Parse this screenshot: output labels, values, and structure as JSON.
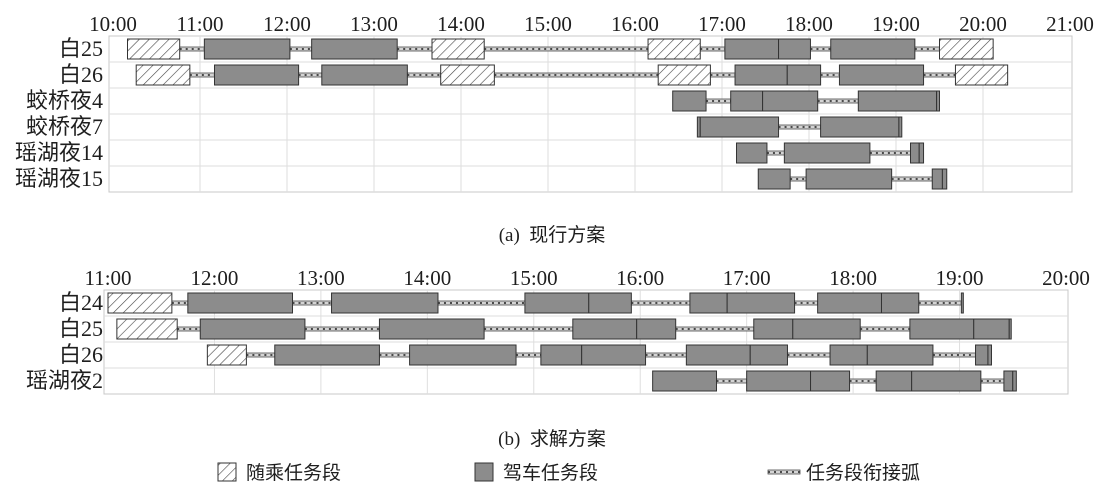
{
  "figure": {
    "colors": {
      "drive_fill": "#8c8c8c",
      "outline": "#333333",
      "hatch": "#444444",
      "grid": "#dedede",
      "frame": "#c8c8c8",
      "link_fill": "#d4d4d4",
      "link_dash": "#4a4a4a"
    },
    "legend": {
      "placement": "bottom",
      "items": [
        {
          "label": "随乘任务段",
          "style": "hatched"
        },
        {
          "label": "驾车任务段",
          "style": "gray-fill"
        },
        {
          "label": "任务段衔接弧",
          "style": "dashed-link"
        }
      ]
    }
  },
  "chart_data": [
    {
      "type": "bar",
      "subtype": "gantt",
      "caption": "(a)  现行方案",
      "x_axis_position": "top",
      "xlim": [
        "10:00",
        "21:00"
      ],
      "x_ticks": [
        "10:00",
        "11:00",
        "12:00",
        "13:00",
        "14:00",
        "15:00",
        "16:00",
        "17:00",
        "18:00",
        "19:00",
        "20:00",
        "21:00"
      ],
      "grid": true,
      "rows": [
        {
          "label": "白25",
          "segments": [
            {
              "start": "10:10",
              "end": "10:46",
              "kind": "随乘任务段"
            },
            {
              "start": "11:03",
              "end": "12:02",
              "kind": "驾车任务段"
            },
            {
              "start": "12:17",
              "end": "13:16",
              "kind": "驾车任务段"
            },
            {
              "start": "13:40",
              "end": "14:16",
              "kind": "随乘任务段"
            },
            {
              "start": "16:09",
              "end": "16:45",
              "kind": "随乘任务段"
            },
            {
              "start": "17:02",
              "end": "17:39",
              "kind": "驾车任务段"
            },
            {
              "start": "17:39",
              "end": "18:01",
              "kind": "驾车任务段"
            },
            {
              "start": "18:15",
              "end": "19:13",
              "kind": "驾车任务段"
            },
            {
              "start": "19:30",
              "end": "20:07",
              "kind": "随乘任务段"
            }
          ]
        },
        {
          "label": "白26",
          "segments": [
            {
              "start": "10:16",
              "end": "10:53",
              "kind": "随乘任务段"
            },
            {
              "start": "11:10",
              "end": "12:08",
              "kind": "驾车任务段"
            },
            {
              "start": "12:24",
              "end": "13:23",
              "kind": "驾车任务段"
            },
            {
              "start": "13:46",
              "end": "14:23",
              "kind": "随乘任务段"
            },
            {
              "start": "16:16",
              "end": "16:52",
              "kind": "随乘任务段"
            },
            {
              "start": "17:09",
              "end": "17:45",
              "kind": "驾车任务段"
            },
            {
              "start": "17:45",
              "end": "18:08",
              "kind": "驾车任务段"
            },
            {
              "start": "18:21",
              "end": "19:19",
              "kind": "驾车任务段"
            },
            {
              "start": "19:41",
              "end": "20:17",
              "kind": "随乘任务段"
            }
          ]
        },
        {
          "label": "蛟桥夜4",
          "segments": [
            {
              "start": "16:26",
              "end": "16:49",
              "kind": "驾车任务段"
            },
            {
              "start": "17:06",
              "end": "17:28",
              "kind": "驾车任务段"
            },
            {
              "start": "17:28",
              "end": "18:06",
              "kind": "驾车任务段"
            },
            {
              "start": "18:34",
              "end": "19:28",
              "kind": "驾车任务段"
            },
            {
              "start": "19:28",
              "end": "19:30",
              "kind": "驾车任务段"
            }
          ]
        },
        {
          "label": "蛟桥夜7",
          "segments": [
            {
              "start": "16:43",
              "end": "16:45",
              "kind": "驾车任务段"
            },
            {
              "start": "16:45",
              "end": "17:39",
              "kind": "驾车任务段"
            },
            {
              "start": "18:08",
              "end": "19:02",
              "kind": "驾车任务段"
            },
            {
              "start": "19:02",
              "end": "19:04",
              "kind": "驾车任务段"
            }
          ]
        },
        {
          "label": "瑶湖夜14",
          "segments": [
            {
              "start": "17:10",
              "end": "17:31",
              "kind": "驾车任务段"
            },
            {
              "start": "17:43",
              "end": "18:42",
              "kind": "驾车任务段"
            },
            {
              "start": "19:10",
              "end": "19:16",
              "kind": "驾车任务段"
            },
            {
              "start": "19:16",
              "end": "19:19",
              "kind": "驾车任务段"
            }
          ]
        },
        {
          "label": "瑶湖夜15",
          "segments": [
            {
              "start": "17:25",
              "end": "17:47",
              "kind": "驾车任务段"
            },
            {
              "start": "17:58",
              "end": "18:57",
              "kind": "驾车任务段"
            },
            {
              "start": "19:25",
              "end": "19:32",
              "kind": "驾车任务段"
            },
            {
              "start": "19:32",
              "end": "19:35",
              "kind": "驾车任务段"
            }
          ]
        }
      ]
    },
    {
      "type": "bar",
      "subtype": "gantt",
      "caption": "(b)  求解方案",
      "x_axis_position": "top",
      "xlim": [
        "11:00",
        "20:00"
      ],
      "x_ticks": [
        "11:00",
        "12:00",
        "13:00",
        "14:00",
        "15:00",
        "16:00",
        "17:00",
        "18:00",
        "19:00",
        "20:00"
      ],
      "grid": true,
      "rows": [
        {
          "label": "白24",
          "segments": [
            {
              "start": "11:00",
              "end": "11:36",
              "kind": "随乘任务段"
            },
            {
              "start": "11:45",
              "end": "12:44",
              "kind": "驾车任务段"
            },
            {
              "start": "13:06",
              "end": "14:06",
              "kind": "驾车任务段"
            },
            {
              "start": "14:55",
              "end": "15:31",
              "kind": "驾车任务段"
            },
            {
              "start": "15:31",
              "end": "15:55",
              "kind": "驾车任务段"
            },
            {
              "start": "16:28",
              "end": "16:49",
              "kind": "驾车任务段"
            },
            {
              "start": "16:49",
              "end": "17:27",
              "kind": "驾车任务段"
            },
            {
              "start": "17:40",
              "end": "18:16",
              "kind": "驾车任务段"
            },
            {
              "start": "18:16",
              "end": "18:37",
              "kind": "驾车任务段"
            },
            {
              "start": "19:01",
              "end": "19:02",
              "kind": "驾车任务段"
            }
          ]
        },
        {
          "label": "白25",
          "segments": [
            {
              "start": "11:05",
              "end": "11:39",
              "kind": "随乘任务段"
            },
            {
              "start": "11:52",
              "end": "12:51",
              "kind": "驾车任务段"
            },
            {
              "start": "13:33",
              "end": "14:32",
              "kind": "驾车任务段"
            },
            {
              "start": "15:22",
              "end": "15:58",
              "kind": "驾车任务段"
            },
            {
              "start": "15:58",
              "end": "16:20",
              "kind": "驾车任务段"
            },
            {
              "start": "17:04",
              "end": "17:26",
              "kind": "驾车任务段"
            },
            {
              "start": "17:26",
              "end": "18:04",
              "kind": "驾车任务段"
            },
            {
              "start": "18:32",
              "end": "19:08",
              "kind": "驾车任务段"
            },
            {
              "start": "19:08",
              "end": "19:28",
              "kind": "驾车任务段"
            },
            {
              "start": "19:28",
              "end": "19:29",
              "kind": "驾车任务段"
            }
          ]
        },
        {
          "label": "白26",
          "segments": [
            {
              "start": "11:56",
              "end": "12:18",
              "kind": "随乘任务段"
            },
            {
              "start": "12:34",
              "end": "13:33",
              "kind": "驾车任务段"
            },
            {
              "start": "13:50",
              "end": "14:50",
              "kind": "驾车任务段"
            },
            {
              "start": "15:04",
              "end": "15:27",
              "kind": "驾车任务段"
            },
            {
              "start": "15:27",
              "end": "16:03",
              "kind": "驾车任务段"
            },
            {
              "start": "16:26",
              "end": "17:02",
              "kind": "驾车任务段"
            },
            {
              "start": "17:02",
              "end": "17:23",
              "kind": "驾车任务段"
            },
            {
              "start": "17:47",
              "end": "18:08",
              "kind": "驾车任务段"
            },
            {
              "start": "18:08",
              "end": "18:45",
              "kind": "驾车任务段"
            },
            {
              "start": "19:09",
              "end": "19:16",
              "kind": "驾车任务段"
            },
            {
              "start": "19:16",
              "end": "19:18",
              "kind": "驾车任务段"
            }
          ]
        },
        {
          "label": "瑶湖夜2",
          "segments": [
            {
              "start": "16:07",
              "end": "16:43",
              "kind": "驾车任务段"
            },
            {
              "start": "17:00",
              "end": "17:36",
              "kind": "驾车任务段"
            },
            {
              "start": "17:36",
              "end": "17:58",
              "kind": "驾车任务段"
            },
            {
              "start": "18:13",
              "end": "18:33",
              "kind": "驾车任务段"
            },
            {
              "start": "18:33",
              "end": "19:12",
              "kind": "驾车任务段"
            },
            {
              "start": "19:25",
              "end": "19:30",
              "kind": "驾车任务段"
            },
            {
              "start": "19:30",
              "end": "19:32",
              "kind": "驾车任务段"
            }
          ]
        }
      ]
    }
  ]
}
